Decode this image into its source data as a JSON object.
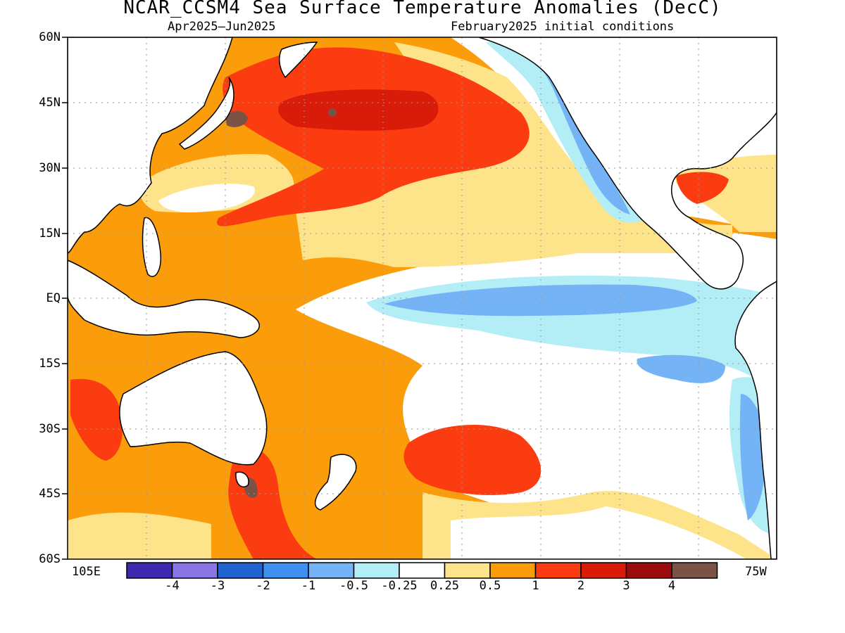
{
  "title": "NCAR_CCSM4 Sea Surface Temperature Anomalies (DecC)",
  "subtitle_left": "Apr2025—Jun2025",
  "subtitle_right": "February2025 initial conditions",
  "lat_labels": [
    "60N",
    "45N",
    "30N",
    "15N",
    "EQ",
    "15S",
    "30S",
    "45S",
    "60S"
  ],
  "lon_labels": {
    "left": "105E",
    "right": "75W"
  },
  "colorbar": {
    "colors": [
      "#3c29b0",
      "#8a74e6",
      "#1f63cf",
      "#3f8fef",
      "#74b3f5",
      "#b3eef7",
      "#ffffff",
      "#fde38a",
      "#fb9c0a",
      "#fa3c10",
      "#d91b0a",
      "#9b0b0b",
      "#7a5246"
    ],
    "labels": [
      "-4",
      "-3",
      "-2",
      "-1",
      "-0.5",
      "-0.25",
      "0.25",
      "0.5",
      "1",
      "2",
      "3",
      "4"
    ]
  },
  "colors": {
    "white": "#ffffff",
    "yellow": "#fde38a",
    "orange": "#fb9c0a",
    "red": "#fa3c10",
    "darkred": "#d91b0a",
    "brown": "#7a5246",
    "lightcyan": "#b3eef7",
    "lightblue": "#74b3f5",
    "land": "#ffffff"
  }
}
